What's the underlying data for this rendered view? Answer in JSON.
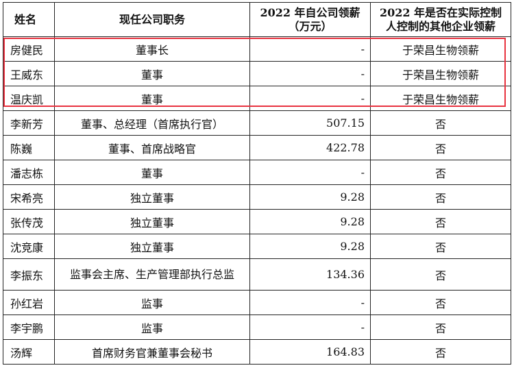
{
  "headers": [
    "姓名",
    "现任公司职务",
    "2022 年自公司领薪\n（万元）",
    "2022 年是否在实际控制\n人控制的其他企业领薪"
  ],
  "rows": [
    {
      "name": "房健民",
      "title": "董事长",
      "salary": "-",
      "other": "于荣昌生物领薪"
    },
    {
      "name": "王威东",
      "title": "董事",
      "salary": "-",
      "other": "于荣昌生物领薪"
    },
    {
      "name": "温庆凯",
      "title": "董事",
      "salary": "-",
      "other": "于荣昌生物领薪"
    },
    {
      "name": "李新芳",
      "title": "董事、总经理（首席执行官）",
      "salary": "507.15",
      "other": "否"
    },
    {
      "name": "陈巍",
      "title": "董事、首席战略官",
      "salary": "422.78",
      "other": "否"
    },
    {
      "name": "潘志栋",
      "title": "董事",
      "salary": "-",
      "other": "否"
    },
    {
      "name": "宋希亮",
      "title": "独立董事",
      "salary": "9.28",
      "other": "否"
    },
    {
      "name": "张传茂",
      "title": "独立董事",
      "salary": "9.28",
      "other": "否"
    },
    {
      "name": "沈竞康",
      "title": "独立董事",
      "salary": "9.28",
      "other": "否"
    },
    {
      "name": "李振东",
      "title": "监事会主席、生产管理部执行总监",
      "salary": "134.36",
      "other": "否"
    },
    {
      "name": "孙红岩",
      "title": "监事",
      "salary": "-",
      "other": "否"
    },
    {
      "name": "李宇鹏",
      "title": "监事",
      "salary": "-",
      "other": "否"
    },
    {
      "name": "汤辉",
      "title": "首席财务官兼董事会秘书",
      "salary": "164.83",
      "other": "否"
    }
  ],
  "highlight_color": "#e8323f"
}
